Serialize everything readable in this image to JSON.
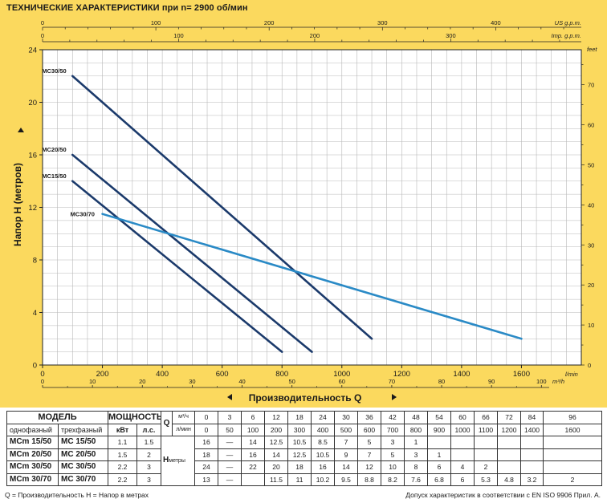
{
  "chart_data": {
    "type": "line",
    "title": "ТЕХНИЧЕСКИЕ ХАРАКТЕРИСТИКИ при n= 2900 об/мин",
    "xlabel": "Производительность Q",
    "ylabel": "Напор H   (метров)",
    "x_unit": "l/min",
    "x_unit_m3": "m³/h",
    "xlim": [
      0,
      1800
    ],
    "ylim": [
      0,
      24
    ],
    "x_ticks": [
      0,
      200,
      400,
      600,
      800,
      1000,
      1200,
      1400,
      1600
    ],
    "y_ticks": [
      0,
      4,
      8,
      12,
      16,
      20,
      24
    ],
    "m3h_ticks": [
      0,
      10,
      20,
      30,
      40,
      50,
      60,
      70,
      80,
      90,
      100
    ],
    "us_gpm_unit": "US g.p.m.",
    "us_gpm_ticks": [
      0,
      100,
      200,
      300,
      400
    ],
    "imp_gpm_unit": "Imp. g.p.m.",
    "imp_gpm_ticks": [
      0,
      100,
      200,
      300
    ],
    "feet_unit": "feet",
    "feet_ticks": [
      0,
      10,
      20,
      30,
      40,
      50,
      60,
      70
    ],
    "grid": true,
    "series": [
      {
        "name": "MC30/50",
        "x": [
          100,
          1100
        ],
        "y": [
          22,
          2
        ],
        "color": "#1b3a6b"
      },
      {
        "name": "MC20/50",
        "x": [
          100,
          900
        ],
        "y": [
          16,
          1
        ],
        "color": "#1b3a6b"
      },
      {
        "name": "MC15/50",
        "x": [
          100,
          800
        ],
        "y": [
          14,
          1
        ],
        "color": "#1b3a6b"
      },
      {
        "name": "MC30/70",
        "x": [
          200,
          1600
        ],
        "y": [
          11.5,
          2
        ],
        "color": "#2a8ac6"
      }
    ]
  },
  "table": {
    "model_header": "МОДЕЛЬ",
    "power_header": "МОЩНОСТЬ",
    "single_phase": "однофазный",
    "three_phase": "трехфазный",
    "kw": "кВт",
    "hp": "л.с.",
    "q_label": "Q",
    "q_unit_m3": "м³/ч",
    "q_unit_lmin": "л/мин",
    "h_label": "H",
    "h_unit": "метры",
    "q_m3h": [
      "0",
      "3",
      "6",
      "12",
      "18",
      "24",
      "30",
      "36",
      "42",
      "48",
      "54",
      "60",
      "66",
      "72",
      "84",
      "96"
    ],
    "q_lmin": [
      "0",
      "50",
      "100",
      "200",
      "300",
      "400",
      "500",
      "600",
      "700",
      "800",
      "900",
      "1000",
      "1100",
      "1200",
      "1400",
      "1600"
    ],
    "rows": [
      {
        "single": "MCm 15/50",
        "three": "MC 15/50",
        "kw": "1.1",
        "hp": "1.5",
        "h": [
          "16",
          "—",
          "14",
          "12.5",
          "10.5",
          "8.5",
          "7",
          "5",
          "3",
          "1",
          "",
          "",
          "",
          "",
          "",
          ""
        ]
      },
      {
        "single": "MCm 20/50",
        "three": "MC 20/50",
        "kw": "1.5",
        "hp": "2",
        "h": [
          "18",
          "—",
          "16",
          "14",
          "12.5",
          "10.5",
          "9",
          "7",
          "5",
          "3",
          "1",
          "",
          "",
          "",
          "",
          ""
        ]
      },
      {
        "single": "MCm 30/50",
        "three": "MC 30/50",
        "kw": "2.2",
        "hp": "3",
        "h": [
          "24",
          "—",
          "22",
          "20",
          "18",
          "16",
          "14",
          "12",
          "10",
          "8",
          "6",
          "4",
          "2",
          "",
          "",
          ""
        ]
      },
      {
        "single": "MCm 30/70",
        "three": "MC 30/70",
        "kw": "2.2",
        "hp": "3",
        "h": [
          "13",
          "—",
          "",
          "11.5",
          "11",
          "10.2",
          "9.5",
          "8.8",
          "8.2",
          "7.6",
          "6.8",
          "6",
          "5.3",
          "4.8",
          "3.2",
          "2"
        ]
      }
    ]
  },
  "footer": {
    "legend": "Q = Производительность   H = Напор в метрах",
    "tolerance": "Допуск характеристик в соответствии с EN ISO 9906 Прил. A."
  }
}
